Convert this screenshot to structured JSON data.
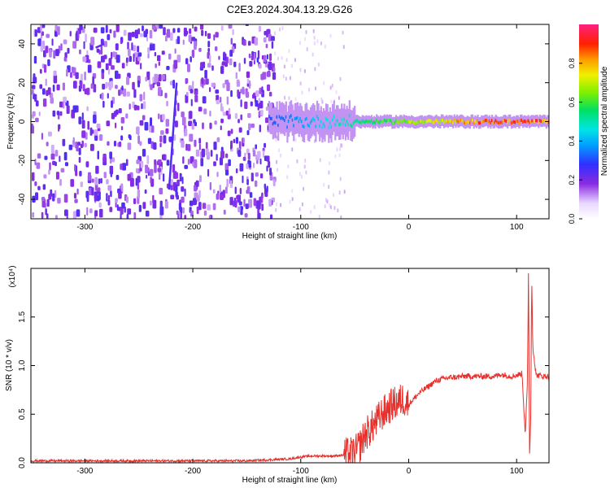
{
  "figure_title": "C2E3.2024.304.13.29.G26",
  "colors": {
    "snr_line": "#e8302c",
    "axis": "#000000",
    "background": "#ffffff",
    "spectrogram_noise": "#7a3cf0"
  },
  "chart_data": [
    {
      "type": "heatmap",
      "title": "C2E3.2024.304.13.29.G26",
      "xlabel": "Height of straight line (km)",
      "ylabel": "Frequency (Hz)",
      "xlim": [
        -350,
        130
      ],
      "ylim": [
        -50,
        50
      ],
      "x_ticks": [
        -300,
        -200,
        -100,
        0,
        100
      ],
      "x_tick_labels": [
        "-300",
        "-200",
        "-100",
        "0",
        "100"
      ],
      "y_ticks": [
        -40,
        -20,
        0,
        20,
        40
      ],
      "y_tick_labels": [
        "-40",
        "-20",
        "0",
        "20",
        "40"
      ],
      "colorbar": {
        "label": "Normalized spectral amplitude",
        "range": [
          0,
          1
        ],
        "ticks": [
          0,
          0.2,
          0.4,
          0.6,
          0.8
        ],
        "tick_labels": [
          "0.0",
          "0.2",
          "0.4",
          "0.6",
          "0.8"
        ],
        "colormap": "rainbow"
      },
      "features": [
        {
          "kind": "noise",
          "x_range": [
            -350,
            -125
          ],
          "freq_range": [
            -50,
            50
          ],
          "amplitude": 0.1
        },
        {
          "kind": "sparse_noise",
          "x_range": [
            -125,
            -60
          ],
          "freq_range": [
            -50,
            50
          ],
          "amplitude": 0.05
        },
        {
          "kind": "streak",
          "x": [
            -222,
            -215
          ],
          "freq": [
            -35,
            20
          ],
          "amplitude": 0.15
        },
        {
          "kind": "streak",
          "x": [
            -290,
            -282
          ],
          "freq": [
            38,
            40
          ],
          "amplitude": 0.12
        },
        {
          "kind": "carrier",
          "x_range": [
            -130,
            130
          ],
          "center_freq": 0,
          "amplitude_range": [
            0.3,
            0.95
          ]
        }
      ]
    },
    {
      "type": "line",
      "xlabel": "Height of straight line (km)",
      "ylabel": "SNR (10 * v/v)",
      "scale_label": "(x10⁴)",
      "xlim": [
        -350,
        130
      ],
      "ylim": [
        0,
        2.0
      ],
      "x_ticks": [
        -300,
        -200,
        -100,
        0,
        100
      ],
      "x_tick_labels": [
        "-300",
        "-200",
        "-100",
        "0",
        "100"
      ],
      "y_ticks": [
        0,
        0.5,
        1.0,
        1.5
      ],
      "y_tick_labels": [
        "0.0",
        "0.5",
        "1.0",
        "1.5"
      ],
      "series": [
        {
          "x": [
            -350,
            -300,
            -250,
            -200,
            -150,
            -130,
            -110,
            -100,
            -90,
            -80,
            -70,
            -60,
            -50,
            -45,
            -40,
            -35,
            -30,
            -25,
            -20,
            -15,
            -10,
            -5,
            0,
            5,
            10,
            15,
            20,
            25,
            30,
            35,
            40,
            45,
            50,
            60,
            70,
            80,
            85,
            90,
            95,
            100,
            105,
            108,
            110,
            111,
            112,
            113,
            114,
            115,
            118,
            120,
            125,
            130
          ],
          "y": [
            0.02,
            0.02,
            0.02,
            0.02,
            0.02,
            0.03,
            0.04,
            0.06,
            0.07,
            0.07,
            0.07,
            0.08,
            0.1,
            0.18,
            0.3,
            0.35,
            0.42,
            0.5,
            0.55,
            0.6,
            0.62,
            0.66,
            0.6,
            0.66,
            0.72,
            0.76,
            0.8,
            0.84,
            0.86,
            0.87,
            0.88,
            0.88,
            0.89,
            0.89,
            0.89,
            0.89,
            0.91,
            0.9,
            0.89,
            0.9,
            0.92,
            0.3,
            0.8,
            2.0,
            0.1,
            0.4,
            1.9,
            1.2,
            0.9,
            0.9,
            0.89,
            0.89
          ]
        }
      ]
    }
  ]
}
